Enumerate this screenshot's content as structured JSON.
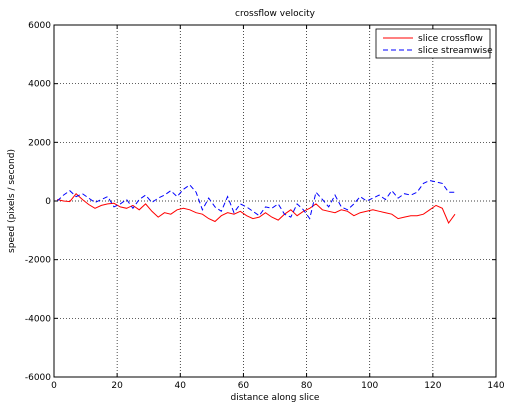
{
  "chart_data": {
    "type": "line",
    "title": "crossflow velocity",
    "xlabel": "distance along slice",
    "ylabel": "speed (pixels / second)",
    "xlim": [
      0,
      140
    ],
    "ylim": [
      -6000,
      6000
    ],
    "xticks": [
      0,
      20,
      40,
      60,
      80,
      100,
      120,
      140
    ],
    "yticks": [
      -6000,
      -4000,
      -2000,
      0,
      2000,
      4000,
      6000
    ],
    "grid": true,
    "legend_position": "top-right",
    "series": [
      {
        "name": "slice crossflow",
        "color": "#ff0000",
        "dash": "solid",
        "x": [
          1,
          3,
          5,
          7,
          9,
          11,
          13,
          15,
          17,
          19,
          21,
          23,
          25,
          27,
          29,
          31,
          33,
          35,
          37,
          39,
          41,
          43,
          45,
          47,
          49,
          51,
          53,
          55,
          57,
          59,
          61,
          63,
          65,
          67,
          69,
          71,
          73,
          75,
          77,
          79,
          81,
          83,
          85,
          87,
          89,
          91,
          93,
          95,
          97,
          99,
          101,
          103,
          105,
          107,
          109,
          111,
          113,
          115,
          117,
          119,
          121,
          123,
          125,
          127
        ],
        "y": [
          50,
          0,
          -20,
          250,
          50,
          -120,
          -250,
          -150,
          -100,
          -80,
          -200,
          -250,
          -150,
          -300,
          -100,
          -350,
          -550,
          -400,
          -450,
          -300,
          -250,
          -300,
          -400,
          -450,
          -600,
          -700,
          -500,
          -400,
          -450,
          -350,
          -500,
          -600,
          -550,
          -400,
          -550,
          -650,
          -450,
          -300,
          -500,
          -350,
          -250,
          -100,
          -300,
          -350,
          -400,
          -300,
          -350,
          -500,
          -400,
          -350,
          -300,
          -350,
          -400,
          -450,
          -600,
          -550,
          -500,
          -500,
          -450,
          -300,
          -150,
          -250,
          -750,
          -450
        ]
      },
      {
        "name": "slice streamwise",
        "color": "#0000ff",
        "dash": "dashed",
        "x": [
          1,
          3,
          5,
          7,
          9,
          11,
          13,
          15,
          17,
          19,
          21,
          23,
          25,
          27,
          29,
          31,
          33,
          35,
          37,
          39,
          41,
          43,
          45,
          47,
          49,
          51,
          53,
          55,
          57,
          59,
          61,
          63,
          65,
          67,
          69,
          71,
          73,
          75,
          77,
          79,
          81,
          83,
          85,
          87,
          89,
          91,
          93,
          95,
          97,
          99,
          101,
          103,
          105,
          107,
          109,
          111,
          113,
          115,
          117,
          119,
          121,
          123,
          125,
          127
        ],
        "y": [
          0,
          200,
          350,
          150,
          250,
          100,
          -50,
          50,
          150,
          -200,
          -100,
          50,
          -250,
          50,
          200,
          -50,
          100,
          200,
          350,
          150,
          400,
          550,
          300,
          -300,
          100,
          -200,
          -350,
          150,
          -400,
          -100,
          -200,
          -350,
          -500,
          -200,
          -250,
          -100,
          -450,
          -550,
          -100,
          -300,
          -600,
          300,
          50,
          -200,
          200,
          -200,
          -300,
          -100,
          150,
          0,
          100,
          200,
          50,
          350,
          100,
          250,
          200,
          300,
          600,
          700,
          650,
          600,
          300,
          300
        ]
      }
    ]
  }
}
